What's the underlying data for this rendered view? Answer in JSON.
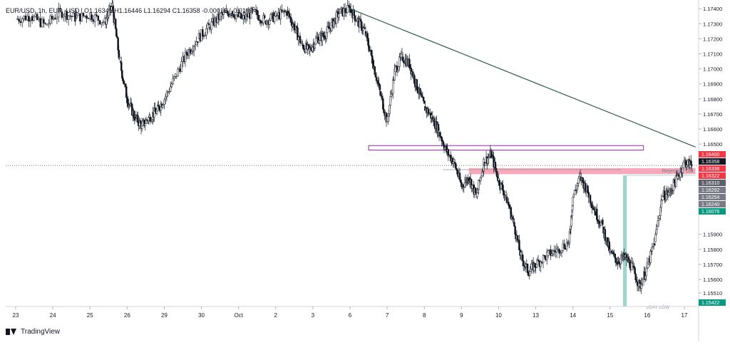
{
  "header": {
    "symbol": "EUR/USD, 1h, EUR_USD",
    "ohlc": "O1.16341 H1.16446 L1.16294 C1.16358 -0.00016 (-0.01%)"
  },
  "footer": {
    "brand": "TradingView"
  },
  "chart_data": {
    "type": "candlestick",
    "price_scale": {
      "min": 1.1542,
      "max": 1.1742,
      "ticks": [
        1.174,
        1.173,
        1.172,
        1.171,
        1.17,
        1.169,
        1.168,
        1.167,
        1.166,
        1.165,
        1.159,
        1.158,
        1.157,
        1.156,
        1.1551
      ],
      "tick_labels": [
        "1.17400",
        "1.17300",
        "1.17200",
        "1.17100",
        "1.17000",
        "1.16900",
        "1.16800",
        "1.16700",
        "1.16600",
        "1.16500",
        "1.15900",
        "1.15800",
        "1.15700",
        "1.15600",
        "1.15510"
      ]
    },
    "time_axis": {
      "labels": [
        "23",
        "24",
        "25",
        "26",
        "29",
        "30",
        "Oct",
        "2",
        "3",
        "6",
        "7",
        "8",
        "9",
        "10",
        "13",
        "14",
        "15",
        "16",
        "17"
      ],
      "first_index": 0,
      "last_index": 18
    },
    "price_badges": [
      {
        "value": "1.16400",
        "color": "#f23645"
      },
      {
        "value": "1.16358",
        "color": "#131722"
      },
      {
        "value": "1.16338",
        "color": "#f23645"
      },
      {
        "value": "1.16322",
        "color": "#f23645"
      },
      {
        "value": "1.16310",
        "color": "#5d606b"
      },
      {
        "value": "1.16292",
        "color": "#787b86"
      },
      {
        "value": "1.16254",
        "color": "#787b86"
      },
      {
        "value": "1.16240",
        "color": "#787b86"
      },
      {
        "value": "1.16076",
        "color": "#089981"
      },
      {
        "value": "1.15422",
        "color": "#089981"
      }
    ],
    "annotations": {
      "rejection_label": "Rejection OB",
      "day_low_label": "DAY LOW",
      "rejection_zone": {
        "x_start": 12.2,
        "x_end": 18.3,
        "y_top": 1.1634,
        "y_bottom": 1.163
      },
      "purple_box": {
        "x_start": 9.5,
        "x_end": 16.9,
        "y_top": 1.1649,
        "y_bottom": 1.1646
      },
      "trendline": {
        "x_start": 9.0,
        "y_start": 1.174,
        "x_end": 18.3,
        "y_end": 1.1648
      },
      "teal_bar": {
        "x_start": 16.35,
        "x_end": 16.45,
        "y_top": 1.16292,
        "y_bottom": 1.15422
      },
      "teal_line": {
        "x_start": 16.45,
        "x_end": 18.3,
        "y": 1.16292
      },
      "grey_line": {
        "x_start": 11.5,
        "x_end": 16.3,
        "y": 1.1633
      },
      "day_low_line": {
        "x_start": 13.0,
        "x_end": 17.6,
        "y": 1.1542
      },
      "current_price": 1.16358
    },
    "path_points": [
      [
        0.0,
        1.1733
      ],
      [
        0.4,
        1.1735
      ],
      [
        0.8,
        1.1729
      ],
      [
        1.2,
        1.1738
      ],
      [
        1.6,
        1.1734
      ],
      [
        2.0,
        1.1736
      ],
      [
        2.4,
        1.1731
      ],
      [
        2.6,
        1.1742
      ],
      [
        2.8,
        1.1705
      ],
      [
        3.0,
        1.168
      ],
      [
        3.2,
        1.1668
      ],
      [
        3.4,
        1.1662
      ],
      [
        3.6,
        1.1668
      ],
      [
        3.8,
        1.1672
      ],
      [
        4.0,
        1.168
      ],
      [
        4.3,
        1.1695
      ],
      [
        4.6,
        1.171
      ],
      [
        4.9,
        1.172
      ],
      [
        5.2,
        1.1728
      ],
      [
        5.5,
        1.1735
      ],
      [
        5.8,
        1.1738
      ],
      [
        6.1,
        1.1733
      ],
      [
        6.4,
        1.1738
      ],
      [
        6.7,
        1.1732
      ],
      [
        7.0,
        1.1735
      ],
      [
        7.3,
        1.1738
      ],
      [
        7.5,
        1.1728
      ],
      [
        7.7,
        1.1716
      ],
      [
        7.9,
        1.1712
      ],
      [
        8.1,
        1.172
      ],
      [
        8.3,
        1.1722
      ],
      [
        8.5,
        1.1729
      ],
      [
        8.7,
        1.1737
      ],
      [
        9.0,
        1.174
      ],
      [
        9.2,
        1.1732
      ],
      [
        9.4,
        1.1725
      ],
      [
        9.6,
        1.1706
      ],
      [
        9.8,
        1.1685
      ],
      [
        10.0,
        1.1665
      ],
      [
        10.2,
        1.1698
      ],
      [
        10.4,
        1.1708
      ],
      [
        10.6,
        1.1703
      ],
      [
        10.8,
        1.1688
      ],
      [
        11.0,
        1.1675
      ],
      [
        11.2,
        1.1668
      ],
      [
        11.4,
        1.1658
      ],
      [
        11.6,
        1.1645
      ],
      [
        11.8,
        1.1638
      ],
      [
        12.0,
        1.1622
      ],
      [
        12.2,
        1.1628
      ],
      [
        12.4,
        1.1615
      ],
      [
        12.6,
        1.1638
      ],
      [
        12.8,
        1.1643
      ],
      [
        13.0,
        1.1626
      ],
      [
        13.2,
        1.1615
      ],
      [
        13.4,
        1.1598
      ],
      [
        13.6,
        1.1575
      ],
      [
        13.8,
        1.1565
      ],
      [
        14.0,
        1.157
      ],
      [
        14.3,
        1.1576
      ],
      [
        14.6,
        1.158
      ],
      [
        14.9,
        1.1585
      ],
      [
        15.0,
        1.1615
      ],
      [
        15.2,
        1.1628
      ],
      [
        15.4,
        1.1618
      ],
      [
        15.6,
        1.1605
      ],
      [
        15.8,
        1.1595
      ],
      [
        16.0,
        1.1578
      ],
      [
        16.2,
        1.1572
      ],
      [
        16.4,
        1.1575
      ],
      [
        16.6,
        1.1568
      ],
      [
        16.8,
        1.1555
      ],
      [
        17.0,
        1.1568
      ],
      [
        17.2,
        1.1585
      ],
      [
        17.4,
        1.1615
      ],
      [
        17.6,
        1.1618
      ],
      [
        17.8,
        1.1627
      ],
      [
        18.0,
        1.1638
      ],
      [
        18.2,
        1.1636
      ]
    ]
  }
}
